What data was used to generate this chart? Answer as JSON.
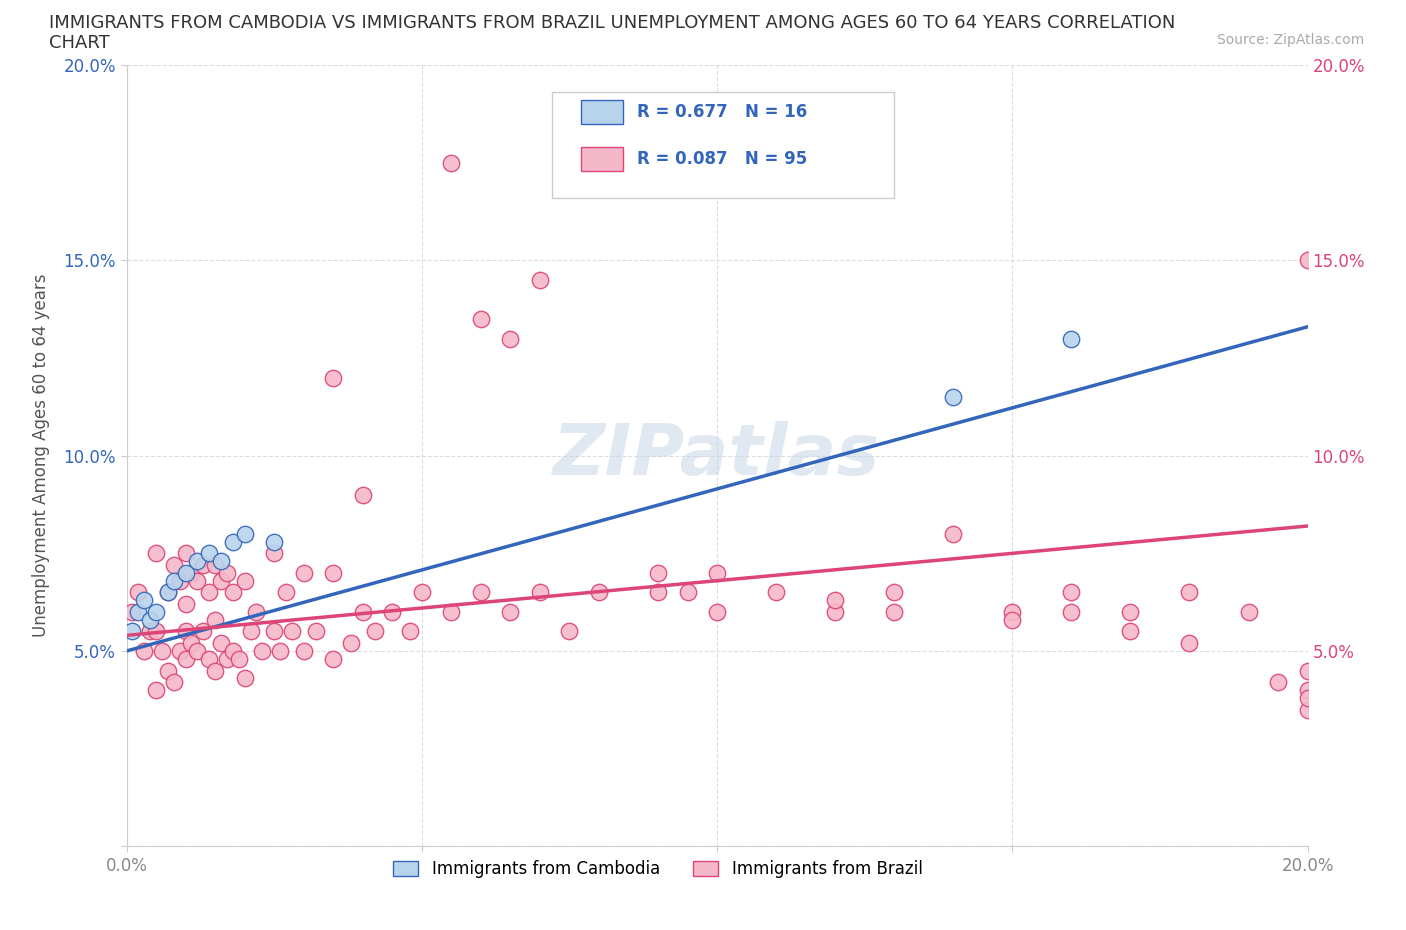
{
  "title_line1": "IMMIGRANTS FROM CAMBODIA VS IMMIGRANTS FROM BRAZIL UNEMPLOYMENT AMONG AGES 60 TO 64 YEARS CORRELATION",
  "title_line2": "CHART",
  "source": "Source: ZipAtlas.com",
  "ylabel": "Unemployment Among Ages 60 to 64 years",
  "xlim": [
    0.0,
    0.2
  ],
  "ylim": [
    0.0,
    0.2
  ],
  "xticks": [
    0.0,
    0.05,
    0.1,
    0.15,
    0.2
  ],
  "yticks": [
    0.0,
    0.05,
    0.1,
    0.15,
    0.2
  ],
  "xticklabels": [
    "0.0%",
    "",
    "",
    "",
    "20.0%"
  ],
  "yticklabels_left": [
    "",
    "5.0%",
    "10.0%",
    "15.0%",
    "20.0%"
  ],
  "yticklabels_right": [
    "",
    "5.0%",
    "10.0%",
    "15.0%",
    "20.0%"
  ],
  "background_color": "#ffffff",
  "grid_color": "#dddddd",
  "cambodia_color": "#b8d4ec",
  "brazil_color": "#f5b8c8",
  "cambodia_line_color": "#3366bb",
  "brazil_line_color": "#dd4477",
  "cambodia_R": 0.677,
  "cambodia_N": 16,
  "brazil_R": 0.087,
  "brazil_N": 95,
  "legend_label_cambodia": "Immigrants from Cambodia",
  "legend_label_brazil": "Immigrants from Brazil",
  "cam_line_x0": 0.0,
  "cam_line_y0": 0.05,
  "cam_line_x1": 0.2,
  "cam_line_y1": 0.133,
  "bra_line_x0": 0.0,
  "bra_line_y0": 0.054,
  "bra_line_x1": 0.2,
  "bra_line_y1": 0.082,
  "cambodia_pts_x": [
    0.001,
    0.002,
    0.003,
    0.004,
    0.005,
    0.007,
    0.008,
    0.01,
    0.012,
    0.014,
    0.016,
    0.018,
    0.02,
    0.025,
    0.14,
    0.16
  ],
  "cambodia_pts_y": [
    0.055,
    0.06,
    0.063,
    0.058,
    0.06,
    0.065,
    0.068,
    0.07,
    0.073,
    0.075,
    0.073,
    0.078,
    0.08,
    0.078,
    0.115,
    0.13
  ],
  "brazil_pts_x": [
    0.001,
    0.002,
    0.003,
    0.004,
    0.005,
    0.005,
    0.005,
    0.006,
    0.007,
    0.007,
    0.008,
    0.008,
    0.009,
    0.009,
    0.01,
    0.01,
    0.01,
    0.01,
    0.011,
    0.011,
    0.012,
    0.012,
    0.013,
    0.013,
    0.014,
    0.014,
    0.015,
    0.015,
    0.015,
    0.016,
    0.016,
    0.017,
    0.017,
    0.018,
    0.018,
    0.019,
    0.02,
    0.02,
    0.021,
    0.022,
    0.023,
    0.025,
    0.025,
    0.026,
    0.027,
    0.028,
    0.03,
    0.03,
    0.032,
    0.035,
    0.035,
    0.038,
    0.04,
    0.042,
    0.045,
    0.048,
    0.05,
    0.055,
    0.06,
    0.065,
    0.07,
    0.075,
    0.08,
    0.09,
    0.095,
    0.1,
    0.11,
    0.12,
    0.13,
    0.14,
    0.15,
    0.16,
    0.17,
    0.18,
    0.19,
    0.2,
    0.035,
    0.04,
    0.055,
    0.06,
    0.065,
    0.07,
    0.09,
    0.1,
    0.12,
    0.13,
    0.15,
    0.16,
    0.17,
    0.18,
    0.195,
    0.2,
    0.2,
    0.2,
    0.2
  ],
  "brazil_pts_y": [
    0.06,
    0.065,
    0.05,
    0.055,
    0.04,
    0.055,
    0.075,
    0.05,
    0.045,
    0.065,
    0.042,
    0.072,
    0.05,
    0.068,
    0.048,
    0.055,
    0.062,
    0.075,
    0.052,
    0.07,
    0.05,
    0.068,
    0.055,
    0.072,
    0.048,
    0.065,
    0.045,
    0.058,
    0.072,
    0.052,
    0.068,
    0.048,
    0.07,
    0.05,
    0.065,
    0.048,
    0.043,
    0.068,
    0.055,
    0.06,
    0.05,
    0.055,
    0.075,
    0.05,
    0.065,
    0.055,
    0.05,
    0.07,
    0.055,
    0.048,
    0.07,
    0.052,
    0.06,
    0.055,
    0.06,
    0.055,
    0.065,
    0.06,
    0.065,
    0.06,
    0.065,
    0.055,
    0.065,
    0.07,
    0.065,
    0.06,
    0.065,
    0.06,
    0.065,
    0.08,
    0.06,
    0.065,
    0.06,
    0.065,
    0.06,
    0.15,
    0.12,
    0.09,
    0.175,
    0.135,
    0.13,
    0.145,
    0.065,
    0.07,
    0.063,
    0.06,
    0.058,
    0.06,
    0.055,
    0.052,
    0.042,
    0.035,
    0.04,
    0.045,
    0.038
  ]
}
